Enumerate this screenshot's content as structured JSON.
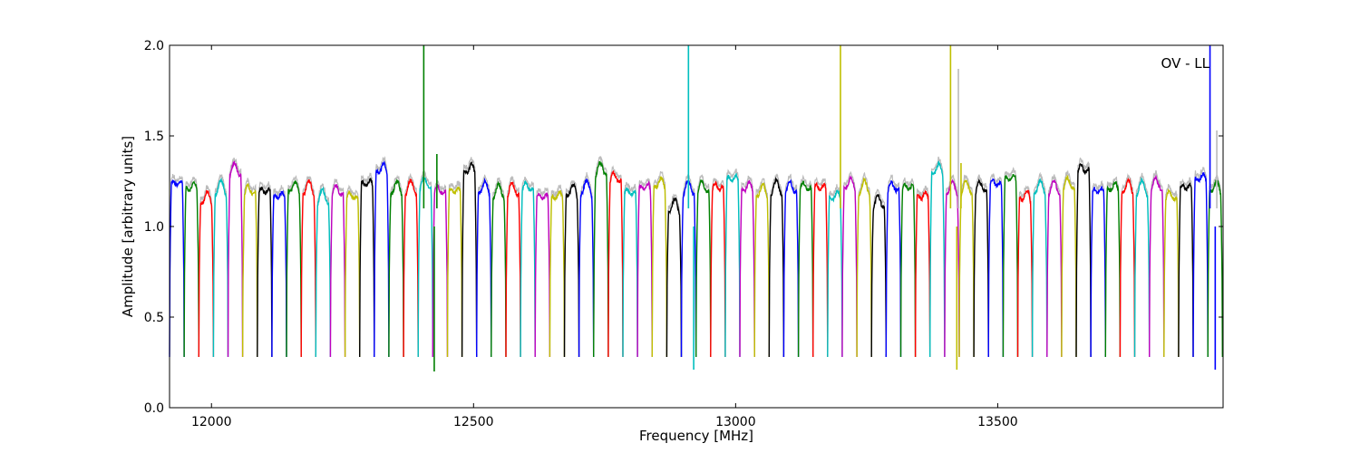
{
  "chart_data": {
    "type": "line",
    "title": "",
    "xlabel": "Frequency [MHz]",
    "ylabel": "Amplitude [arbitrary units]",
    "xlim": [
      11920,
      13930
    ],
    "ylim": [
      0.0,
      2.0
    ],
    "x_ticks": [
      12000,
      12500,
      13000,
      13500
    ],
    "y_ticks": [
      0.0,
      0.5,
      1.0,
      1.5,
      2.0
    ],
    "x_tick_labels": [
      "12000",
      "12500",
      "13000",
      "13500"
    ],
    "y_tick_labels": [
      "0.0",
      "0.5",
      "1.0",
      "1.5",
      "2.0"
    ],
    "annotation": "OV - LL",
    "grid": false,
    "legend": "none",
    "colors": [
      "#0000ff",
      "#008000",
      "#ff0000",
      "#00bfbf",
      "#bf00bf",
      "#bfbf00",
      "#000000"
    ],
    "reference_color": "#bbbbbb",
    "channel_count": 72,
    "channel_start": 11920,
    "channel_width": 27.9,
    "channel_floor": 0.28,
    "channel_levels": [
      1.22,
      1.2,
      1.14,
      1.2,
      1.3,
      1.18,
      1.18,
      1.15,
      1.2,
      1.2,
      1.15,
      1.18,
      1.15,
      1.22,
      1.3,
      1.2,
      1.2,
      1.22,
      1.18,
      1.18,
      1.3,
      1.2,
      1.18,
      1.19,
      1.2,
      1.15,
      1.15,
      1.18,
      1.2,
      1.3,
      1.25,
      1.17,
      1.2,
      1.22,
      1.1,
      1.2,
      1.2,
      1.2,
      1.25,
      1.2,
      1.18,
      1.2,
      1.2,
      1.2,
      1.2,
      1.15,
      1.22,
      1.2,
      1.12,
      1.2,
      1.2,
      1.15,
      1.3,
      1.2,
      1.2,
      1.2,
      1.22,
      1.25,
      1.15,
      1.2,
      1.2,
      1.22,
      1.3,
      1.18,
      1.2,
      1.2,
      1.2,
      1.22,
      1.15,
      1.2,
      1.25,
      1.2
    ],
    "spikes": [
      {
        "x": 12405,
        "y": 2.0,
        "color": "#008000"
      },
      {
        "x": 12430,
        "y": 1.4,
        "color": "#008000"
      },
      {
        "x": 12910,
        "y": 2.0,
        "color": "#00bfbf"
      },
      {
        "x": 13200,
        "y": 2.0,
        "color": "#bfbf00"
      },
      {
        "x": 13410,
        "y": 2.0,
        "color": "#bfbf00"
      },
      {
        "x": 13425,
        "y": 1.87,
        "color": "#bbbbbb"
      },
      {
        "x": 13430,
        "y": 1.35,
        "color": "#bfbf00"
      },
      {
        "x": 13905,
        "y": 2.0,
        "color": "#0000ff"
      },
      {
        "x": 13918,
        "y": 1.53,
        "color": "#bbbbbb"
      }
    ],
    "dips": [
      {
        "x": 12425,
        "y": 0.2,
        "color": "#008000"
      },
      {
        "x": 12920,
        "y": 0.21,
        "color": "#00bfbf"
      },
      {
        "x": 13422,
        "y": 0.21,
        "color": "#bfbf00"
      },
      {
        "x": 13915,
        "y": 0.21,
        "color": "#0000ff"
      }
    ]
  }
}
